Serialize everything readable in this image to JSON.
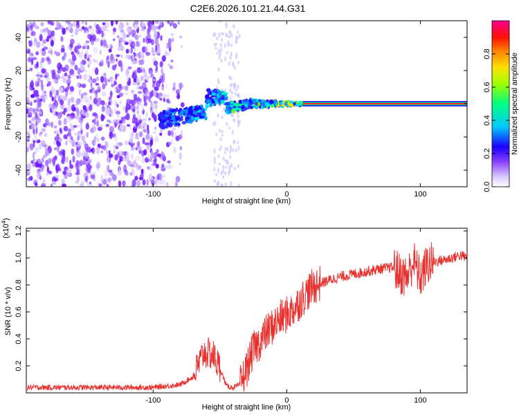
{
  "chart_data": [
    {
      "type": "heatmap",
      "title": "C2E6.2026.101.21.44.G31",
      "xlabel": "Height of straight line (km)",
      "ylabel": "Frequency (Hz)",
      "xlim": [
        -195,
        135
      ],
      "ylim": [
        -50,
        50
      ],
      "xticks": [
        -100,
        0,
        100
      ],
      "yticks": [
        -40,
        -20,
        0,
        20,
        40
      ],
      "colorbar": {
        "label": "Normalized spectral amplitude",
        "range": [
          0,
          1
        ],
        "ticks": [
          "0.0",
          "0.2",
          "0.4",
          "0.6",
          "0.8"
        ],
        "colors": [
          "#ffffff",
          "#c9b0ff",
          "#6a00ff",
          "#0000ff",
          "#00ffff",
          "#00ff00",
          "#ffff00",
          "#ff8000",
          "#ff0000",
          "#ff00a0"
        ]
      },
      "features": {
        "noise_region_x": [
          -195,
          -75
        ],
        "sparse_noise_x": [
          -55,
          -35
        ],
        "signal_x": [
          -95,
          135
        ],
        "signal_freq_start": -10,
        "signal_freq_end": 0,
        "strong_line_from_x": 12
      }
    },
    {
      "type": "line",
      "xlabel": "Height of straight line (km)",
      "ylabel": "SNR (10 * v/v)",
      "y_multiplier": "(x10^4)",
      "xlim": [
        -195,
        135
      ],
      "ylim": [
        0,
        1.22
      ],
      "xticks": [
        -100,
        0,
        100
      ],
      "yticks": [
        "0.2",
        "0.4",
        "0.6",
        "0.8",
        "1.0",
        "1.2"
      ],
      "line_color": "#e8302e",
      "series": [
        {
          "name": "SNR",
          "x": [
            -195,
            -150,
            -100,
            -80,
            -70,
            -62,
            -55,
            -50,
            -45,
            -40,
            -35,
            -30,
            -25,
            -20,
            -15,
            -10,
            -5,
            0,
            5,
            10,
            15,
            20,
            30,
            40,
            50,
            60,
            70,
            80,
            85,
            90,
            95,
            100,
            105,
            110,
            120,
            130,
            135
          ],
          "y": [
            0.04,
            0.04,
            0.04,
            0.06,
            0.12,
            0.3,
            0.28,
            0.18,
            0.05,
            0.04,
            0.06,
            0.18,
            0.32,
            0.38,
            0.45,
            0.5,
            0.55,
            0.58,
            0.62,
            0.68,
            0.74,
            0.79,
            0.83,
            0.86,
            0.88,
            0.9,
            0.92,
            0.93,
            0.88,
            0.86,
            0.98,
            0.85,
            0.95,
            0.97,
            0.99,
            1.02,
            1.0
          ]
        }
      ]
    }
  ]
}
